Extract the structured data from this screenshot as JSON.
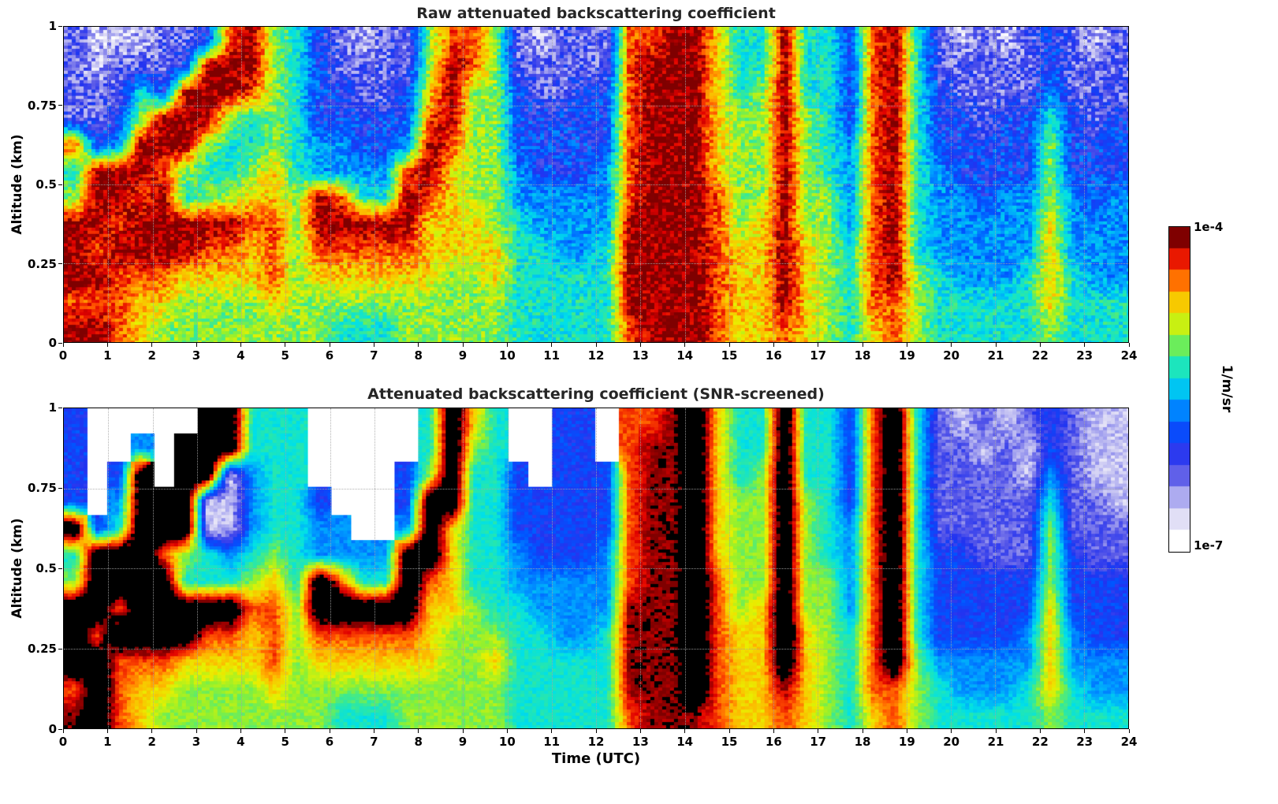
{
  "figure": {
    "xlabel": "Time (UTC)",
    "colorbar": {
      "top": "1e-4",
      "bottom": "1e-7",
      "unit": "1/m/sr"
    }
  },
  "colormap": [
    {
      "t": 0.0,
      "c": "#ffffff"
    },
    {
      "t": 0.07,
      "c": "#e2e0f6"
    },
    {
      "t": 0.14,
      "c": "#b0aef0"
    },
    {
      "t": 0.22,
      "c": "#5a5ae8"
    },
    {
      "t": 0.3,
      "c": "#2233f0"
    },
    {
      "t": 0.38,
      "c": "#0055ff"
    },
    {
      "t": 0.46,
      "c": "#00a0ff"
    },
    {
      "t": 0.53,
      "c": "#00e0e8"
    },
    {
      "t": 0.6,
      "c": "#30e8a0"
    },
    {
      "t": 0.67,
      "c": "#90f030"
    },
    {
      "t": 0.74,
      "c": "#e8f000"
    },
    {
      "t": 0.81,
      "c": "#ffb400"
    },
    {
      "t": 0.88,
      "c": "#ff5000"
    },
    {
      "t": 0.95,
      "c": "#e00000"
    },
    {
      "t": 1.0,
      "c": "#7f0000"
    }
  ],
  "chart_data": [
    {
      "type": "heatmap",
      "title": "Raw attenuated backscattering coefficient",
      "ylabel": "Altitude (km)",
      "x_range": [
        0,
        24
      ],
      "y_range": [
        0,
        1
      ],
      "x_ticks": [
        0,
        1,
        2,
        3,
        4,
        5,
        6,
        7,
        8,
        9,
        10,
        11,
        12,
        13,
        14,
        15,
        16,
        17,
        18,
        19,
        20,
        21,
        22,
        23,
        24
      ],
      "y_ticks": [
        0,
        0.25,
        0.5,
        0.75,
        1
      ],
      "y_tick_labels": [
        "0",
        "0.25",
        "0.5",
        "0.75",
        "1"
      ],
      "value_scale": "log10 attenuated backscatter, 1/m/sr, color range 1e-7 to 1e-4",
      "encoding": ". = no data (white); digits 0-9 = log10 value linearly from 1e-7 (0) to 1e-4 (9); A = above color scale maximum",
      "time_resolution_hours": 0.5,
      "altitude_rows_top_to_bottom_km": [
        0.96,
        0.875,
        0.79,
        0.71,
        0.625,
        0.54,
        0.46,
        0.375,
        0.29,
        0.21,
        0.125,
        0.04
      ],
      "noise_amp": 0.14,
      "seed": 7,
      "over_color": "#7f0000",
      "grid_rows_top_to_bottom": [
        "211122389653212268862122288997559553895212123212",
        "212223999653222269862222289997559553895222223222",
        "222539998653322379663223389997569553895322224222",
        "223699965653333389663333389997669653895332335323",
        "834999655654433498663333389997669654895333336333",
        "599986556754444897664333489997669654895433336333",
        "699895667769855987664444489998669664895443446434",
        "998999998869999977765444499998679664895444447444",
        "989999887868888877775544599998779765895444447444",
        "998887777867777776675555599998779765896544457544",
        "888776666766666666665555599998779765886555557555",
        "998766666666555666665555589998778765786555556555"
      ]
    },
    {
      "type": "heatmap",
      "title": "Attenuated backscattering coefficient (SNR-screened)",
      "xlabel": "Time (UTC)",
      "ylabel": "Altitude (km)",
      "x_range": [
        0,
        24
      ],
      "y_range": [
        0,
        1
      ],
      "x_ticks": [
        0,
        1,
        2,
        3,
        4,
        5,
        6,
        7,
        8,
        9,
        10,
        11,
        12,
        13,
        14,
        15,
        16,
        17,
        18,
        19,
        20,
        21,
        22,
        23,
        24
      ],
      "y_ticks": [
        0,
        0.25,
        0.5,
        0.75,
        1
      ],
      "y_tick_labels": [
        "0",
        "0.25",
        "0.5",
        "0.75",
        "1"
      ],
      "value_scale": "log10 attenuated backscatter, 1/m/sr, color range 1e-7 to 1e-4, low-SNR pixels removed (white)",
      "encoding": ". = screened out / no data (white); digits 0-9 = log10 value linearly from 1e-7 (0) to 1e-4 (9); A = above color scale maximum (rendered black)",
      "time_resolution_hours": 0.5,
      "altitude_rows_top_to_bottom_km": [
        0.96,
        0.875,
        0.79,
        0.71,
        0.625,
        0.54,
        0.46,
        0.375,
        0.29,
        0.21,
        0.125,
        0.04
      ],
      "noise_amp": 0.07,
      "seed": 99,
      "over_color": "#000000",
      "grid_rows_top_to_bottom": [
        "3.....AA555.....5A75..33.889A755A5538A5212123211",
        "3..4.AAA555.....5A65..33.899A755A5538A5221213211",
        "3.3A.AA1455....36A553.333899A756A5538A5222214211",
        "3.4AAA114553...3AA5533333899A766A6538A5222225221",
        "A35AAA1145544..4A75533333899A766A6548A5222226222",
        "5AAA86545654444AA75543334899A766A6548A5332226322",
        "6AAAA555675A855A875544444899A866A6648A5333336333",
        "AA8AAAAA886AAAAA776554444999A867A6648A5333337333",
        "A8AAAA8878688888766655445999A877A7658A5333347433",
        "AA88877778677777766755555999A877A7658A6444447444",
        "8A87766667666666666655555999A8779765886544457544",
        "9A8766666666555666665555589998778765786555556555"
      ]
    }
  ]
}
